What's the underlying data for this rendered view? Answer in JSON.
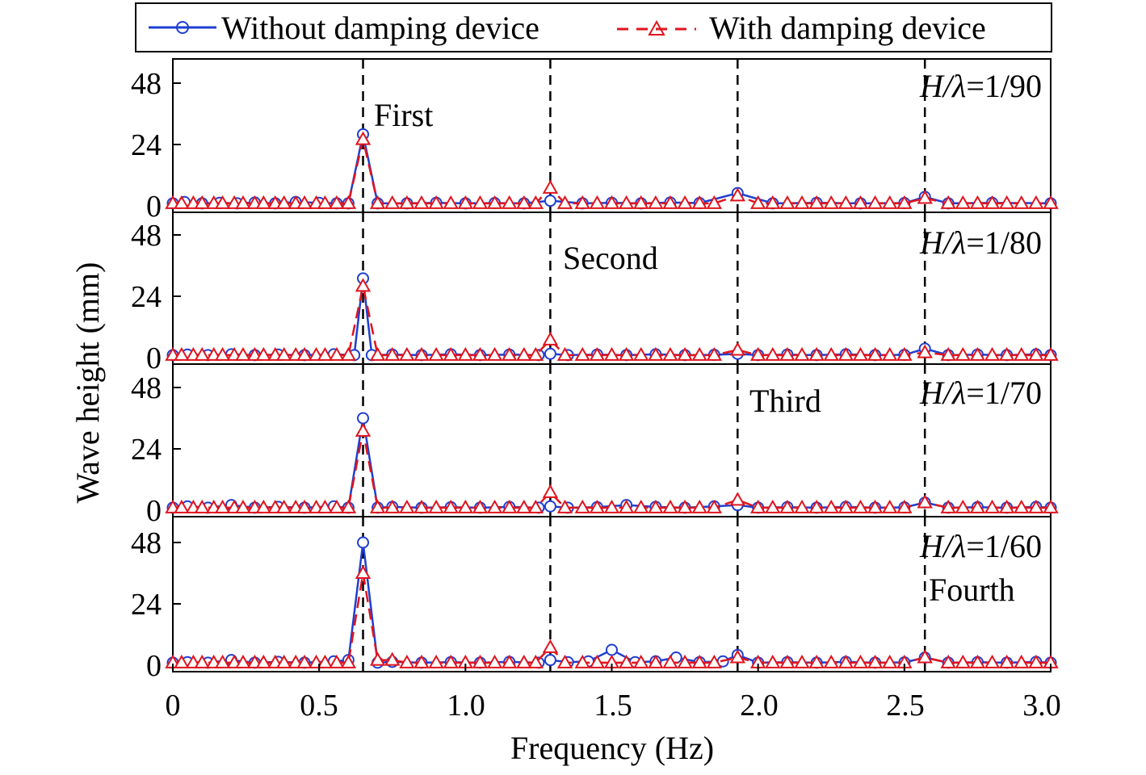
{
  "chart_data": {
    "type": "line",
    "xlabel": "Frequency (Hz)",
    "ylabel": "Wave height (mm)",
    "xlim": [
      0,
      3.0
    ],
    "xticks": [
      "0",
      "0.5",
      "1.0",
      "1.5",
      "2.0",
      "2.5",
      "3.0"
    ],
    "ylim": [
      0,
      60
    ],
    "yticks": [
      "0",
      "24",
      "48"
    ],
    "legend": {
      "placement": "top",
      "entries": [
        "Without damping device",
        "With damping device"
      ]
    },
    "colors": {
      "without": "#1f3fd0",
      "with": "#e0141e"
    },
    "harmonic_lines": [
      0.65,
      1.29,
      1.93,
      2.57
    ],
    "harmonic_labels": [
      "First",
      "Second",
      "Third",
      "Fourth"
    ],
    "panels": [
      {
        "label": "1/90",
        "series": [
          {
            "name": "Without damping device",
            "x": [
              0.0,
              0.04,
              0.1,
              0.16,
              0.22,
              0.28,
              0.35,
              0.42,
              0.5,
              0.56,
              0.6,
              0.65,
              0.7,
              0.8,
              0.9,
              1.0,
              1.1,
              1.2,
              1.29,
              1.4,
              1.5,
              1.6,
              1.7,
              1.8,
              1.93,
              2.05,
              2.2,
              2.35,
              2.5,
              2.57,
              2.65,
              2.8,
              3.0
            ],
            "y": [
              1,
              1.5,
              1,
              1.2,
              1,
              1.3,
              1,
              1.5,
              1.2,
              1,
              1,
              28,
              1,
              1,
              1.2,
              1,
              1.1,
              1,
              2,
              1,
              1.2,
              1,
              1.3,
              1.1,
              5,
              1,
              1.2,
              1,
              1.1,
              3.5,
              1,
              1.2,
              1
            ]
          },
          {
            "name": "With damping device",
            "x": [
              0.0,
              0.03,
              0.07,
              0.1,
              0.14,
              0.17,
              0.21,
              0.24,
              0.28,
              0.31,
              0.35,
              0.38,
              0.42,
              0.45,
              0.49,
              0.52,
              0.56,
              0.6,
              0.65,
              0.7,
              0.75,
              0.8,
              0.85,
              0.9,
              0.95,
              1.0,
              1.05,
              1.1,
              1.15,
              1.2,
              1.24,
              1.29,
              1.34,
              1.4,
              1.45,
              1.5,
              1.55,
              1.6,
              1.65,
              1.7,
              1.75,
              1.8,
              1.85,
              1.93,
              2.0,
              2.05,
              2.1,
              2.15,
              2.2,
              2.25,
              2.3,
              2.35,
              2.4,
              2.45,
              2.5,
              2.57,
              2.65,
              2.7,
              2.75,
              2.8,
              2.85,
              2.9,
              2.95,
              3.0
            ],
            "y": [
              1,
              1,
              1,
              1,
              1,
              1,
              1,
              1,
              1,
              1,
              1,
              1,
              1,
              1,
              1,
              1,
              1,
              1,
              26,
              1,
              1,
              1,
              1,
              1,
              1,
              1,
              1,
              1,
              1,
              1,
              1,
              7,
              1,
              1,
              1,
              1,
              1,
              1,
              1,
              1,
              1,
              1,
              1,
              4,
              1,
              1,
              1,
              1,
              1,
              1,
              1,
              1,
              1,
              1,
              1,
              3,
              1,
              1,
              1,
              1,
              1,
              1,
              1,
              1
            ]
          }
        ]
      },
      {
        "label": "1/80",
        "series": [
          {
            "name": "Without damping device",
            "x": [
              0.0,
              0.05,
              0.12,
              0.2,
              0.28,
              0.36,
              0.45,
              0.55,
              0.62,
              0.65,
              0.68,
              0.75,
              0.85,
              0.95,
              1.05,
              1.15,
              1.25,
              1.29,
              1.35,
              1.45,
              1.55,
              1.65,
              1.75,
              1.85,
              1.93,
              2.0,
              2.1,
              2.2,
              2.3,
              2.4,
              2.5,
              2.57,
              2.65,
              2.75,
              2.85,
              2.95,
              3.0
            ],
            "y": [
              1,
              1.2,
              1,
              1.3,
              1,
              1.2,
              1,
              1.3,
              1,
              31,
              1,
              1.2,
              1,
              1.3,
              1,
              1.2,
              1,
              1.5,
              1,
              1.2,
              1,
              1.3,
              1,
              1.1,
              1.5,
              1,
              1.2,
              1,
              1.3,
              1,
              1.1,
              3.5,
              1,
              1.2,
              1,
              1.3,
              1
            ]
          },
          {
            "name": "With damping device",
            "x": [
              0.0,
              0.03,
              0.07,
              0.1,
              0.14,
              0.17,
              0.21,
              0.24,
              0.28,
              0.31,
              0.35,
              0.38,
              0.42,
              0.45,
              0.49,
              0.52,
              0.56,
              0.6,
              0.65,
              0.7,
              0.75,
              0.8,
              0.85,
              0.9,
              0.95,
              1.0,
              1.05,
              1.1,
              1.15,
              1.2,
              1.24,
              1.29,
              1.34,
              1.4,
              1.45,
              1.5,
              1.55,
              1.6,
              1.65,
              1.7,
              1.75,
              1.8,
              1.85,
              1.93,
              2.0,
              2.05,
              2.1,
              2.15,
              2.2,
              2.25,
              2.3,
              2.35,
              2.4,
              2.45,
              2.5,
              2.57,
              2.65,
              2.7,
              2.75,
              2.8,
              2.85,
              2.9,
              2.95,
              3.0
            ],
            "y": [
              1,
              1,
              1,
              1,
              1,
              1,
              1,
              1,
              1,
              1,
              1,
              1,
              1,
              1,
              1,
              1,
              1,
              1,
              28,
              1,
              1,
              1,
              1,
              1,
              1,
              1,
              1,
              1,
              1,
              1,
              1,
              7,
              1,
              1,
              1,
              1,
              1,
              1,
              1,
              1,
              1,
              1,
              1,
              3,
              1,
              1,
              1,
              1,
              1,
              1,
              1,
              1,
              1,
              1,
              1,
              2,
              1,
              1,
              1,
              1,
              1,
              1,
              1,
              1
            ]
          }
        ]
      },
      {
        "label": "1/70",
        "series": [
          {
            "name": "Without damping device",
            "x": [
              0.0,
              0.05,
              0.12,
              0.2,
              0.28,
              0.36,
              0.45,
              0.55,
              0.6,
              0.65,
              0.7,
              0.75,
              0.85,
              0.95,
              1.05,
              1.15,
              1.25,
              1.29,
              1.35,
              1.45,
              1.55,
              1.65,
              1.75,
              1.85,
              1.93,
              2.0,
              2.1,
              2.2,
              2.3,
              2.4,
              2.5,
              2.57,
              2.65,
              2.75,
              2.85,
              2.95,
              3.0
            ],
            "y": [
              1,
              1.5,
              1,
              2,
              1,
              1.3,
              1,
              1.5,
              1,
              36,
              1,
              1.3,
              1,
              1.2,
              1,
              1.3,
              1,
              1.5,
              1,
              1.2,
              2,
              1.3,
              1,
              1.5,
              2,
              1,
              1.2,
              1,
              1.3,
              1,
              1.1,
              3,
              1,
              1.2,
              1,
              1.3,
              1
            ]
          },
          {
            "name": "With damping device",
            "x": [
              0.0,
              0.03,
              0.07,
              0.1,
              0.14,
              0.17,
              0.21,
              0.24,
              0.28,
              0.31,
              0.35,
              0.38,
              0.42,
              0.45,
              0.49,
              0.52,
              0.56,
              0.6,
              0.65,
              0.7,
              0.75,
              0.8,
              0.85,
              0.9,
              0.95,
              1.0,
              1.05,
              1.1,
              1.15,
              1.2,
              1.24,
              1.29,
              1.34,
              1.4,
              1.45,
              1.5,
              1.55,
              1.6,
              1.65,
              1.7,
              1.75,
              1.8,
              1.85,
              1.93,
              2.0,
              2.05,
              2.1,
              2.15,
              2.2,
              2.25,
              2.3,
              2.35,
              2.4,
              2.45,
              2.5,
              2.57,
              2.65,
              2.7,
              2.75,
              2.8,
              2.85,
              2.9,
              2.95,
              3.0
            ],
            "y": [
              1,
              1,
              1,
              1,
              1,
              1,
              1,
              1,
              1,
              1,
              1,
              1,
              1,
              1,
              1,
              1,
              1,
              1,
              31,
              1,
              1,
              1,
              1,
              1,
              1,
              1,
              1,
              1,
              1,
              1,
              1,
              7,
              1,
              1,
              1,
              1,
              1,
              1,
              1,
              1,
              1,
              1,
              1,
              4,
              1,
              1,
              1,
              1,
              1,
              1,
              1,
              1,
              1,
              1,
              1,
              3,
              1,
              1,
              1,
              1,
              1,
              1,
              1,
              1
            ]
          }
        ]
      },
      {
        "label": "1/60",
        "series": [
          {
            "name": "Without damping device",
            "x": [
              0.0,
              0.05,
              0.12,
              0.2,
              0.28,
              0.36,
              0.45,
              0.55,
              0.6,
              0.65,
              0.7,
              0.75,
              0.85,
              0.95,
              1.05,
              1.15,
              1.25,
              1.29,
              1.35,
              1.42,
              1.5,
              1.58,
              1.65,
              1.72,
              1.8,
              1.88,
              1.93,
              2.0,
              2.1,
              2.2,
              2.3,
              2.4,
              2.5,
              2.57,
              2.65,
              2.75,
              2.85,
              2.95,
              3.0
            ],
            "y": [
              1,
              1.2,
              1,
              2,
              1,
              1.3,
              1,
              1.5,
              2,
              48,
              1,
              1.3,
              1,
              1.2,
              1,
              1.3,
              1,
              2,
              1.2,
              1.5,
              6,
              1.2,
              1.5,
              3,
              1.2,
              1.5,
              4,
              1,
              1.2,
              1,
              1.3,
              1,
              1.1,
              3,
              1,
              1.2,
              1,
              1.3,
              1
            ]
          },
          {
            "name": "With damping device",
            "x": [
              0.0,
              0.03,
              0.07,
              0.1,
              0.14,
              0.17,
              0.21,
              0.24,
              0.28,
              0.31,
              0.35,
              0.38,
              0.42,
              0.45,
              0.49,
              0.52,
              0.56,
              0.6,
              0.65,
              0.7,
              0.75,
              0.8,
              0.85,
              0.9,
              0.95,
              1.0,
              1.05,
              1.1,
              1.15,
              1.2,
              1.24,
              1.29,
              1.34,
              1.4,
              1.45,
              1.5,
              1.55,
              1.6,
              1.65,
              1.7,
              1.75,
              1.8,
              1.85,
              1.93,
              2.0,
              2.05,
              2.1,
              2.15,
              2.2,
              2.25,
              2.3,
              2.35,
              2.4,
              2.45,
              2.5,
              2.57,
              2.65,
              2.7,
              2.75,
              2.8,
              2.85,
              2.9,
              2.95,
              3.0
            ],
            "y": [
              1,
              1,
              1,
              1,
              1,
              1,
              1,
              1,
              1,
              1,
              1,
              1,
              1,
              1,
              1,
              1,
              1,
              1,
              36,
              2,
              2,
              1,
              1,
              1,
              1,
              1,
              1,
              1,
              1,
              1,
              1,
              7,
              1,
              1,
              1,
              1,
              1,
              1,
              1,
              1,
              1,
              1,
              1,
              3,
              1,
              1,
              1,
              1,
              1,
              1,
              1,
              1,
              1,
              1,
              1,
              3,
              1,
              1,
              1,
              1,
              1,
              1,
              1,
              1
            ]
          }
        ]
      }
    ]
  }
}
